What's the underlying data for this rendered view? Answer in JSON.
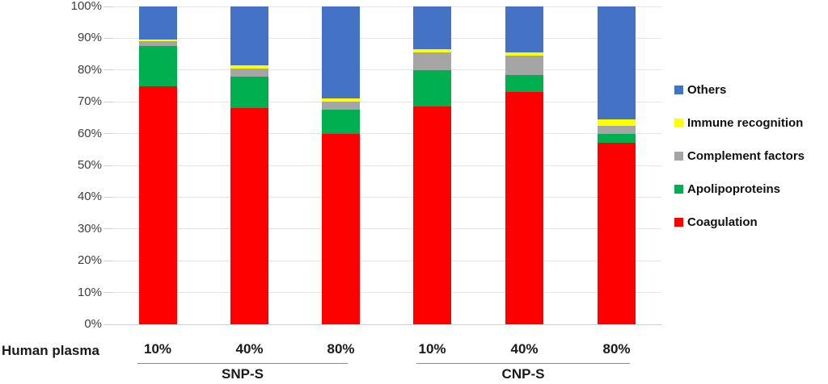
{
  "chart_data": {
    "type": "bar",
    "subtype": "stacked-100-percent",
    "title": "",
    "x_axis_label": "Human plasma",
    "categories": [
      "10%",
      "40%",
      "80%",
      "10%",
      "40%",
      "80%"
    ],
    "groups": [
      {
        "label": "SNP-S",
        "start": 0,
        "end": 2
      },
      {
        "label": "CNP-S",
        "start": 3,
        "end": 5
      }
    ],
    "series": [
      {
        "name": "Coagulation",
        "color": "#FF0000",
        "values": [
          75,
          68,
          60,
          68.5,
          73,
          57
        ]
      },
      {
        "name": "Apolipoproteins",
        "color": "#00B050",
        "values": [
          12.5,
          10,
          7.5,
          11.5,
          5.5,
          3
        ]
      },
      {
        "name": "Complement factors",
        "color": "#A5A5A5",
        "values": [
          1.5,
          2.5,
          2.5,
          5.5,
          6,
          2.5
        ]
      },
      {
        "name": "Immune recognition",
        "color": "#FFFF00",
        "values": [
          0.5,
          1,
          1,
          1,
          1,
          2
        ]
      },
      {
        "name": "Others",
        "color": "#4472C4",
        "values": [
          10.5,
          18.5,
          29,
          13.5,
          14.5,
          35.5
        ]
      }
    ],
    "legend": [
      "Others",
      "Immune recognition",
      "Complement factors",
      "Apolipoproteins",
      "Coagulation"
    ],
    "legend_position": "right",
    "y_ticks": [
      "0%",
      "10%",
      "20%",
      "30%",
      "40%",
      "50%",
      "60%",
      "70%",
      "80%",
      "90%",
      "100%"
    ],
    "ylim": [
      0,
      100
    ],
    "grid": true
  }
}
